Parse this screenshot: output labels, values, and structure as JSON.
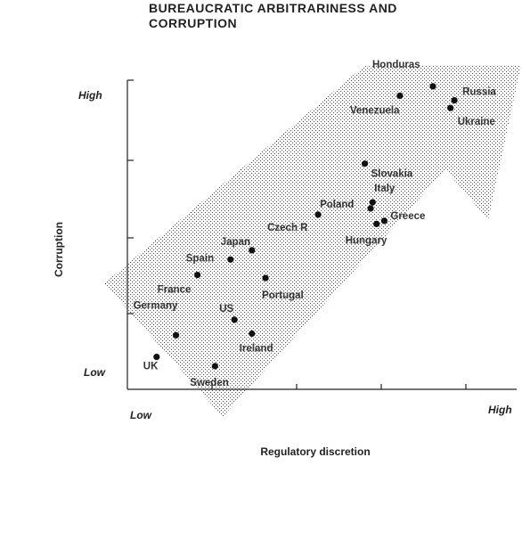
{
  "chart_data": {
    "type": "scatter",
    "title_lines": [
      "BUREAUCRATIC ARBITRARINESS AND",
      "CORRUPTION"
    ],
    "xlabel": "Regulatory discretion",
    "ylabel": "Corruption",
    "x_low": "Low",
    "x_high": "High",
    "y_low": "Low",
    "y_high": "High",
    "xlim": [
      0,
      100
    ],
    "ylim": [
      0,
      100
    ],
    "grid": false,
    "shaded_band": true,
    "points": [
      {
        "label": "Honduras",
        "x": 78.5,
        "y": 98.0
      },
      {
        "label": "Russia",
        "x": 84.0,
        "y": 93.5
      },
      {
        "label": "Ukraine",
        "x": 83.0,
        "y": 91.0
      },
      {
        "label": "Venezuela",
        "x": 70.0,
        "y": 95.0
      },
      {
        "label": "Slovakia",
        "x": 61.0,
        "y": 73.0
      },
      {
        "label": "Italy",
        "x": 63.0,
        "y": 60.5
      },
      {
        "label": "Poland",
        "x": 62.5,
        "y": 58.5
      },
      {
        "label": "Greece",
        "x": 66.0,
        "y": 54.5
      },
      {
        "label": "Hungary",
        "x": 64.0,
        "y": 53.5
      },
      {
        "label": "Czech R",
        "x": 49.0,
        "y": 56.5
      },
      {
        "label": "Japan",
        "x": 32.0,
        "y": 45.0
      },
      {
        "label": "Spain",
        "x": 26.5,
        "y": 42.0
      },
      {
        "label": "France",
        "x": 18.0,
        "y": 37.0
      },
      {
        "label": "Portugal",
        "x": 35.5,
        "y": 36.0
      },
      {
        "label": "US",
        "x": 27.5,
        "y": 22.5
      },
      {
        "label": "Germany",
        "x": 12.5,
        "y": 17.5
      },
      {
        "label": "Ireland",
        "x": 32.0,
        "y": 18.0
      },
      {
        "label": "UK",
        "x": 7.5,
        "y": 10.5
      },
      {
        "label": "Sweden",
        "x": 22.5,
        "y": 7.5
      }
    ]
  }
}
